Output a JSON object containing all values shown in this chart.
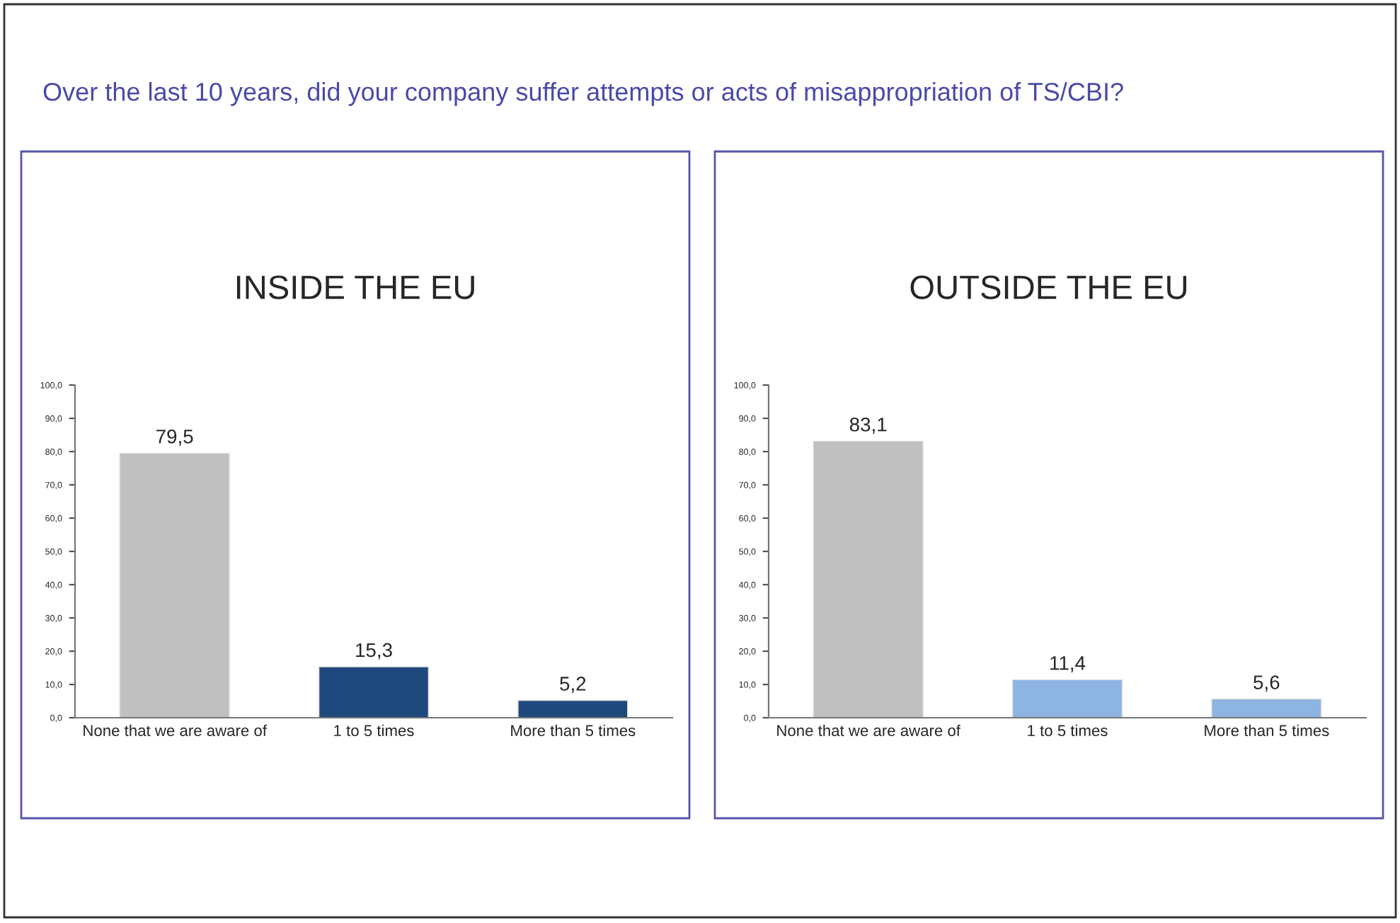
{
  "chart_data": [
    {
      "type": "bar",
      "title": "INSIDE THE EU",
      "annotations": [
        "Over the last 10 years, did your company suffer attempts or acts of misappropriation of TS/CBI?"
      ],
      "categories": [
        "None that we are aware of",
        "1 to 5 times",
        "More than 5 times"
      ],
      "values": [
        79.5,
        15.3,
        5.2
      ],
      "value_labels": [
        "79,5",
        "15,3",
        "5,2"
      ],
      "colors": [
        "#c0c0c0",
        "#1f497d",
        "#1f497d"
      ],
      "ylim": [
        0,
        100
      ],
      "yticks": [
        {
          "value": 0,
          "label": "0,0"
        },
        {
          "value": 10,
          "label": "10,0"
        },
        {
          "value": 20,
          "label": "20,0"
        },
        {
          "value": 30,
          "label": "30,0"
        },
        {
          "value": 40,
          "label": "40,0"
        },
        {
          "value": 50,
          "label": "50,0"
        },
        {
          "value": 60,
          "label": "60,0"
        },
        {
          "value": 70,
          "label": "70,0"
        },
        {
          "value": 80,
          "label": "80,0"
        },
        {
          "value": 90,
          "label": "90,0"
        },
        {
          "value": 100,
          "label": "100,0"
        }
      ]
    },
    {
      "type": "bar",
      "title": "OUTSIDE THE EU",
      "categories": [
        "None that we are aware of",
        "1 to 5 times",
        "More than 5 times"
      ],
      "values": [
        83.1,
        11.4,
        5.6
      ],
      "value_labels": [
        "83,1",
        "11,4",
        "5,6"
      ],
      "colors": [
        "#c0c0c0",
        "#8db4e2",
        "#8db4e2"
      ],
      "ylim": [
        0,
        100
      ],
      "yticks": [
        {
          "value": 0,
          "label": "0,0"
        },
        {
          "value": 10,
          "label": "10,0"
        },
        {
          "value": 20,
          "label": "20,0"
        },
        {
          "value": 30,
          "label": "30,0"
        },
        {
          "value": 40,
          "label": "40,0"
        },
        {
          "value": 50,
          "label": "50,0"
        },
        {
          "value": 60,
          "label": "60,0"
        },
        {
          "value": 70,
          "label": "70,0"
        },
        {
          "value": 80,
          "label": "80,0"
        },
        {
          "value": 90,
          "label": "90,0"
        },
        {
          "value": 100,
          "label": "100,0"
        }
      ]
    }
  ]
}
